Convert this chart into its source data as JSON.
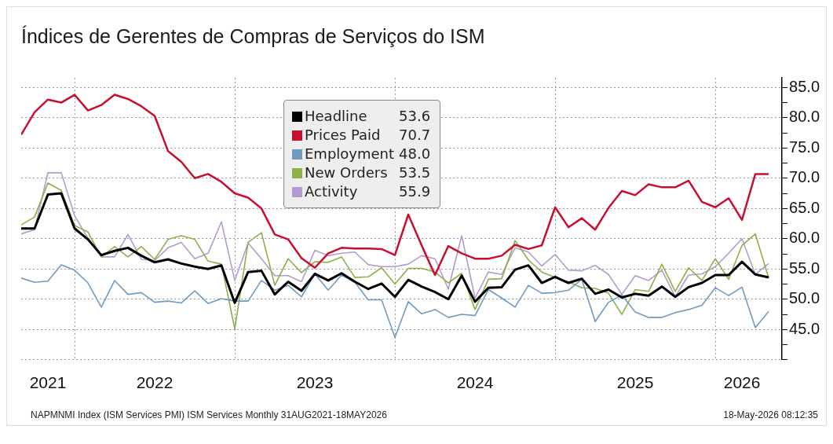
{
  "chart_data": {
    "type": "line",
    "title": "Índices de Gerentes de Compras de Serviços do ISM",
    "x": [
      "2021-08",
      "2021-09",
      "2021-10",
      "2021-11",
      "2021-12",
      "2022-01",
      "2022-02",
      "2022-03",
      "2022-04",
      "2022-05",
      "2022-06",
      "2022-07",
      "2022-08",
      "2022-09",
      "2022-10",
      "2022-11",
      "2022-12",
      "2023-01",
      "2023-02",
      "2023-03",
      "2023-04",
      "2023-05",
      "2023-06",
      "2023-07",
      "2023-08",
      "2023-09",
      "2023-10",
      "2023-11",
      "2023-12",
      "2024-01",
      "2024-02",
      "2024-03",
      "2024-04",
      "2024-05",
      "2024-06",
      "2024-07",
      "2024-08",
      "2024-09",
      "2024-10",
      "2024-11",
      "2024-12",
      "2025-01",
      "2025-02",
      "2025-03",
      "2025-04",
      "2025-05",
      "2025-06",
      "2025-07",
      "2025-08",
      "2025-09",
      "2025-10",
      "2025-11",
      "2025-12",
      "2026-01",
      "2026-02",
      "2026-03",
      "2026-04"
    ],
    "series": [
      {
        "name": "Headline",
        "color": "#000000",
        "values": [
          61.7,
          61.7,
          67.3,
          67.5,
          61.7,
          59.9,
          57.3,
          58.0,
          58.5,
          57.2,
          56.1,
          56.6,
          55.9,
          55.4,
          55.0,
          55.6,
          49.4,
          54.5,
          54.7,
          50.8,
          52.9,
          51.4,
          54.2,
          53.1,
          54.3,
          52.9,
          51.7,
          52.6,
          50.4,
          53.2,
          52.1,
          51.2,
          50.0,
          53.9,
          49.6,
          51.9,
          52.0,
          54.9,
          55.6,
          52.7,
          53.7,
          52.7,
          53.4,
          50.9,
          51.6,
          50.3,
          50.9,
          50.6,
          52.1,
          50.4,
          52.0,
          52.7,
          54.0,
          54.0,
          56.2,
          54.1,
          53.6
        ]
      },
      {
        "name": "Prices Paid",
        "color": "#c8102e",
        "values": [
          77.2,
          80.9,
          83.0,
          82.5,
          83.8,
          81.2,
          82.1,
          83.8,
          83.1,
          81.9,
          80.3,
          74.5,
          72.7,
          70.0,
          70.7,
          69.4,
          67.5,
          66.8,
          65.0,
          60.7,
          59.9,
          56.8,
          55.2,
          57.6,
          58.5,
          58.4,
          58.4,
          58.3,
          57.3,
          64.0,
          58.9,
          54.0,
          58.8,
          57.6,
          56.7,
          56.7,
          57.2,
          59.0,
          58.3,
          58.9,
          65.2,
          61.9,
          63.4,
          61.5,
          65.1,
          67.9,
          67.2,
          69.0,
          68.5,
          68.5,
          69.6,
          66.1,
          65.2,
          66.7,
          63.1,
          70.7,
          70.7
        ]
      },
      {
        "name": "Employment",
        "color": "#6f9bc2",
        "values": [
          53.5,
          52.8,
          53.0,
          55.7,
          54.8,
          52.7,
          48.7,
          53.1,
          50.8,
          51.1,
          49.5,
          49.7,
          49.4,
          51.4,
          49.3,
          50.1,
          49.7,
          49.7,
          53.1,
          51.5,
          52.3,
          50.4,
          54.2,
          51.5,
          54.0,
          52.8,
          49.9,
          49.9,
          43.7,
          49.6,
          47.6,
          48.3,
          47.0,
          47.5,
          47.3,
          51.6,
          50.2,
          48.7,
          52.3,
          51.0,
          51.1,
          51.5,
          53.3,
          46.3,
          49.5,
          50.7,
          47.9,
          47.0,
          47.0,
          47.8,
          48.3,
          49.0,
          51.9,
          50.6,
          52.0,
          45.3,
          48.0
        ]
      },
      {
        "name": "New Orders",
        "color": "#8cb04a",
        "values": [
          62.3,
          63.6,
          69.2,
          68.0,
          62.2,
          61.1,
          57.0,
          58.7,
          57.0,
          58.7,
          56.6,
          59.9,
          60.5,
          59.9,
          56.3,
          55.8,
          45.1,
          59.4,
          61.0,
          52.3,
          56.7,
          54.4,
          56.2,
          56.1,
          57.0,
          53.6,
          53.7,
          55.2,
          52.5,
          55.1,
          55.1,
          54.5,
          52.7,
          54.3,
          48.3,
          53.3,
          53.4,
          59.7,
          56.5,
          54.5,
          53.6,
          52.9,
          51.9,
          51.8,
          51.0,
          47.5,
          51.6,
          51.3,
          55.8,
          51.3,
          55.2,
          53.1,
          56.7,
          53.3,
          58.9,
          60.8,
          53.5
        ]
      },
      {
        "name": "Activity",
        "color": "#b49ad0",
        "values": [
          60.8,
          61.5,
          70.9,
          70.9,
          63.8,
          60.1,
          57.0,
          57.0,
          60.7,
          56.6,
          56.4,
          58.5,
          59.4,
          56.7,
          57.6,
          62.8,
          53.1,
          59.3,
          56.7,
          53.9,
          53.9,
          52.9,
          58.1,
          57.2,
          57.6,
          57.8,
          55.7,
          55.4,
          55.4,
          55.8,
          57.2,
          56.7,
          51.7,
          60.5,
          50.2,
          54.5,
          54.1,
          58.5,
          57.8,
          55.5,
          57.4,
          54.8,
          54.7,
          55.6,
          54.1,
          50.8,
          53.9,
          53.1,
          54.8,
          50.4,
          54.0,
          54.2,
          55.4,
          57.6,
          60.0,
          54.1,
          55.9
        ]
      }
    ],
    "xlim": [
      "2021-08",
      "2026-05"
    ],
    "xticks": [
      {
        "value": "2021-10",
        "label": "2021"
      },
      {
        "value": "2021-12",
        "label": null
      },
      {
        "value": "2022-06",
        "label": "2022"
      },
      {
        "value": "2022-12",
        "label": null
      },
      {
        "value": "2023-06",
        "label": "2023"
      },
      {
        "value": "2023-12",
        "label": null
      },
      {
        "value": "2024-06",
        "label": "2024"
      },
      {
        "value": "2024-12",
        "label": null
      },
      {
        "value": "2025-06",
        "label": "2025"
      },
      {
        "value": "2025-12",
        "label": null
      },
      {
        "value": "2026-02",
        "label": "2026"
      }
    ],
    "ylim": [
      40,
      86.6
    ],
    "yticks": [
      {
        "value": 40,
        "label": null
      },
      {
        "value": 42.5,
        "label": null
      },
      {
        "value": 45,
        "label": "45.0"
      },
      {
        "value": 47.5,
        "label": null
      },
      {
        "value": 50,
        "label": "50.0"
      },
      {
        "value": 52.5,
        "label": null
      },
      {
        "value": 55,
        "label": "55.0"
      },
      {
        "value": 57.5,
        "label": null
      },
      {
        "value": 60,
        "label": "60.0"
      },
      {
        "value": 62.5,
        "label": null
      },
      {
        "value": 65,
        "label": "65.0"
      },
      {
        "value": 67.5,
        "label": null
      },
      {
        "value": 70,
        "label": "70.0"
      },
      {
        "value": 72.5,
        "label": null
      },
      {
        "value": 75,
        "label": "75.0"
      },
      {
        "value": 77.5,
        "label": null
      },
      {
        "value": 80,
        "label": "80.0"
      },
      {
        "value": 82.5,
        "label": null
      },
      {
        "value": 85,
        "label": "85.0"
      }
    ],
    "grid": true,
    "legend": "top",
    "line_style": "solid",
    "annotations": [
      "NAPMNMI Index (ISM Services PMI) ISM Services Monthly 31AUG2021-18MAY2026",
      "18-May-2026 08:12:35",
      "53.6",
      "70.7",
      "48.0",
      "53.5",
      "55.9"
    ]
  }
}
